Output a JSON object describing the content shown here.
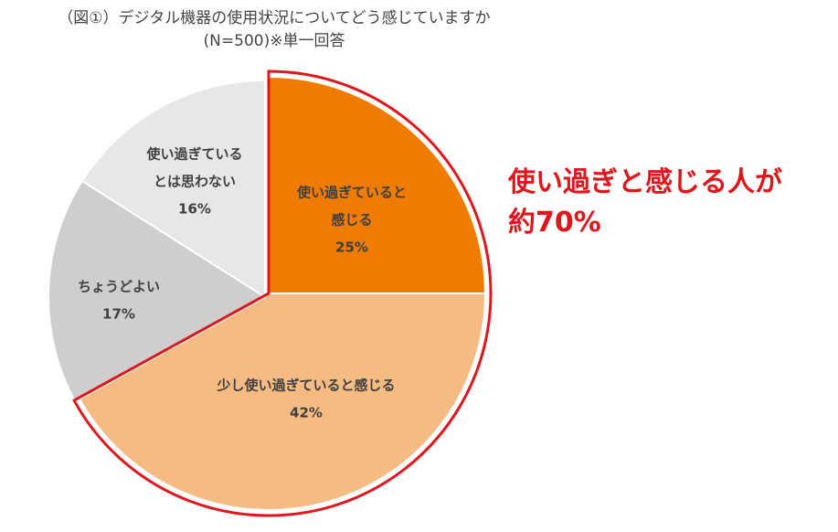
{
  "chart_data": {
    "type": "pie",
    "title": "（図①）デジタル機器の使用状況についてどう感じていますか",
    "subtitle": "(N=500)※単一回答",
    "slices": [
      {
        "label_lines": [
          "使い過ぎていると",
          "感じる"
        ],
        "value": 25,
        "value_label": "25%",
        "color": "#ef7b00"
      },
      {
        "label_lines": [
          "少し使い過ぎていると感じる"
        ],
        "value": 42,
        "value_label": "42%",
        "color": "#f6bb83"
      },
      {
        "label_lines": [
          "ちょうどよい"
        ],
        "value": 17,
        "value_label": "17%",
        "color": "#cfcdcd"
      },
      {
        "label_lines": [
          "使い過ぎている",
          "とは思わない"
        ],
        "value": 16,
        "value_label": "16%",
        "color": "#e8e6e8"
      }
    ],
    "highlight": {
      "slices": [
        0,
        1
      ],
      "outline_color": "#e0161c"
    },
    "annotation_lines": [
      "使い過ぎと感じる人が",
      "約70%"
    ]
  }
}
